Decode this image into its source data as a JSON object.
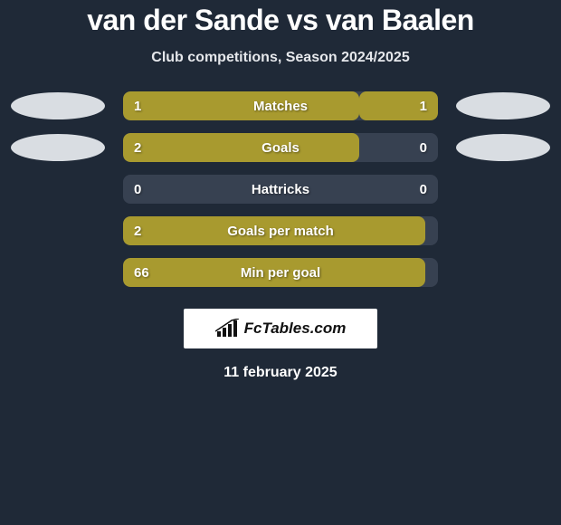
{
  "colors": {
    "background": "#1f2937",
    "bar_track": "#374151",
    "bar_fill": "#a89a2f",
    "ellipse": "#d9dde2",
    "logo_bg": "#ffffff",
    "text": "#ffffff"
  },
  "title": {
    "player1": "van der Sande",
    "vs": "vs",
    "player2": "van Baalen"
  },
  "subtitle": "Club competitions, Season 2024/2025",
  "rows": [
    {
      "label": "Matches",
      "left_val": "1",
      "right_val": "1",
      "left_pct": 75,
      "right_pct": 25,
      "showRight": true,
      "ellipseLeft": true,
      "ellipseRight": true
    },
    {
      "label": "Goals",
      "left_val": "2",
      "right_val": "0",
      "left_pct": 75,
      "right_pct": 0,
      "showRight": true,
      "ellipseLeft": true,
      "ellipseRight": true
    },
    {
      "label": "Hattricks",
      "left_val": "0",
      "right_val": "0",
      "left_pct": 0,
      "right_pct": 0,
      "showRight": true,
      "ellipseLeft": false,
      "ellipseRight": false
    },
    {
      "label": "Goals per match",
      "left_val": "2",
      "right_val": "",
      "left_pct": 96,
      "right_pct": 0,
      "showRight": false,
      "ellipseLeft": false,
      "ellipseRight": false
    },
    {
      "label": "Min per goal",
      "left_val": "66",
      "right_val": "",
      "left_pct": 96,
      "right_pct": 0,
      "showRight": false,
      "ellipseLeft": false,
      "ellipseRight": false
    }
  ],
  "logo": {
    "text": "FcTables.com",
    "icon_name": "bar-chart-icon"
  },
  "date": "11 february 2025"
}
